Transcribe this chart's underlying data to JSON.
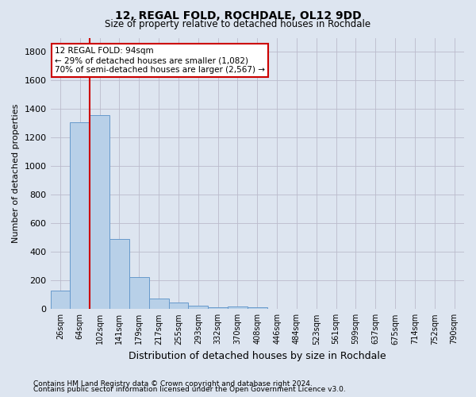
{
  "title": "12, REGAL FOLD, ROCHDALE, OL12 9DD",
  "subtitle": "Size of property relative to detached houses in Rochdale",
  "xlabel": "Distribution of detached houses by size in Rochdale",
  "ylabel": "Number of detached properties",
  "footer1": "Contains HM Land Registry data © Crown copyright and database right 2024.",
  "footer2": "Contains public sector information licensed under the Open Government Licence v3.0.",
  "bin_labels": [
    "26sqm",
    "64sqm",
    "102sqm",
    "141sqm",
    "179sqm",
    "217sqm",
    "255sqm",
    "293sqm",
    "332sqm",
    "370sqm",
    "408sqm",
    "446sqm",
    "484sqm",
    "523sqm",
    "561sqm",
    "599sqm",
    "637sqm",
    "675sqm",
    "714sqm",
    "752sqm",
    "790sqm"
  ],
  "bar_values": [
    130,
    1310,
    1360,
    490,
    225,
    75,
    45,
    25,
    15,
    20,
    15,
    0,
    0,
    0,
    0,
    0,
    0,
    0,
    0,
    0,
    0
  ],
  "bar_color": "#b8d0e8",
  "bar_edge_color": "#6699cc",
  "grid_color": "#bbbbcc",
  "bg_color": "#dde5f0",
  "red_line_color": "#cc0000",
  "red_line_bin": 1,
  "annotation_line1": "12 REGAL FOLD: 94sqm",
  "annotation_line2": "← 29% of detached houses are smaller (1,082)",
  "annotation_line3": "70% of semi-detached houses are larger (2,567) →",
  "annotation_box_color": "#ffffff",
  "annotation_box_edge": "#cc0000",
  "ylim": [
    0,
    1900
  ],
  "yticks": [
    0,
    200,
    400,
    600,
    800,
    1000,
    1200,
    1400,
    1600,
    1800
  ]
}
